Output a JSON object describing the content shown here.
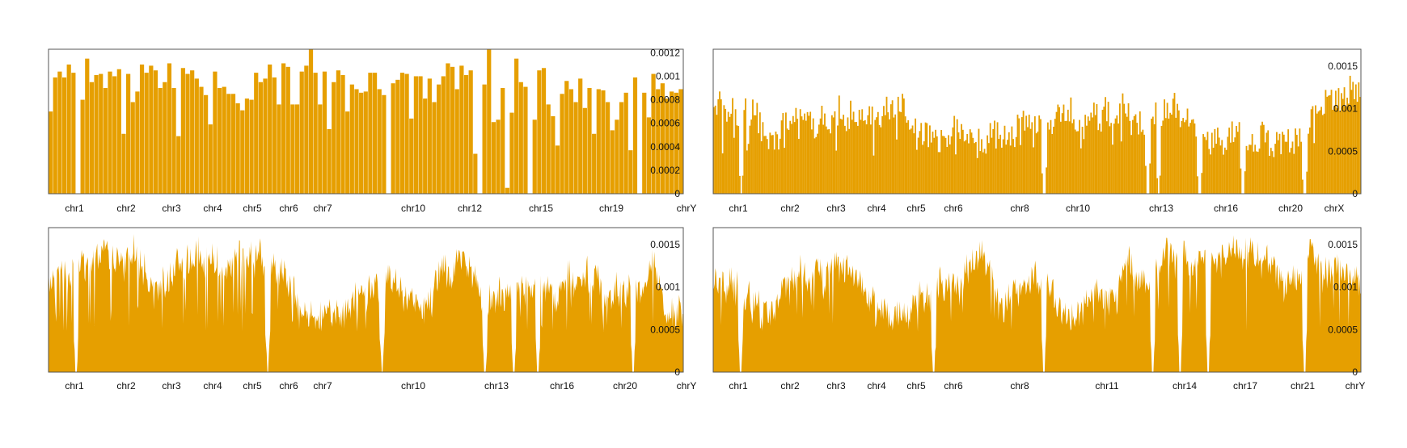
{
  "theme": {
    "bar_color": "#E69F00",
    "frame_color": "#555555",
    "text_color": "#111111",
    "background": "#ffffff"
  },
  "chart_data": [
    {
      "type": "bar",
      "chromosome_labels": [
        "chr1",
        "chr2",
        "chr3",
        "chr4",
        "chr5",
        "chr6",
        "chr7",
        "chr10",
        "chr12",
        "chr15",
        "chr19",
        "chrY"
      ],
      "yticks": [
        0,
        0.0002,
        0.0004,
        0.0006,
        0.0008,
        0.001,
        0.0012
      ],
      "ytick_labels": [
        "0",
        "0.0002",
        "0.0004",
        "0.0006",
        "0.0008",
        "0.001",
        "0.0012"
      ],
      "ylim": [
        0,
        0.00123
      ],
      "grid": false,
      "values": [
        0.0007,
        0.00099,
        0.00104,
        0.00099,
        0.0011,
        0.00103,
        0,
        0.0008,
        0.00115,
        0.00095,
        0.00101,
        0.00102,
        0.0009,
        0.00104,
        0.001,
        0.00106,
        0.00051,
        0.00102,
        0.00078,
        0.00087,
        0.0011,
        0.00103,
        0.00109,
        0.00105,
        0.0009,
        0.00095,
        0.00111,
        0.0009,
        0.00049,
        0.00107,
        0.00102,
        0.00105,
        0.00098,
        0.00091,
        0.00084,
        0.00059,
        0.00104,
        0.0009,
        0.00091,
        0.00085,
        0.00085,
        0.00077,
        0.00071,
        0.00081,
        0.0008,
        0.00103,
        0.00095,
        0.00098,
        0.0011,
        0.00099,
        0.00076,
        0.00111,
        0.00108,
        0.00076,
        0.00076,
        0.00104,
        0.00109,
        0.00123,
        0.00103,
        0.00076,
        0.00104,
        0.00055,
        0.00095,
        0.00105,
        0.00101,
        0.0007,
        0.00093,
        0.00089,
        0.00086,
        0.00087,
        0.00103,
        0.00103,
        0.00089,
        0.00084,
        0,
        0.00094,
        0.00097,
        0.00103,
        0.00102,
        0.00064,
        0.001,
        0.001,
        0.00081,
        0.00098,
        0.00078,
        0.00093,
        0.001,
        0.00111,
        0.00108,
        0.00089,
        0.00109,
        0.00101,
        0.00105,
        0.00034,
        0,
        0.00093,
        0.00123,
        0.00061,
        0.00063,
        0.0009,
        5e-05,
        0.00069,
        0.00115,
        0.00095,
        0.00091,
        0,
        0.00063,
        0.00105,
        0.00107,
        0.00076,
        0.00066,
        0.00041,
        0.00085,
        0.00096,
        0.00089,
        0.00078,
        0.00098,
        0.00073,
        0.0009,
        0.00051,
        0.00089,
        0.00088,
        0.00078,
        0.00054,
        0.00063,
        0.00078,
        0.00086,
        0.00037,
        0.00099,
        0,
        0.00086,
        0.00065,
        0.00102,
        0.00089,
        0.00094,
        0.00081,
        0.00087,
        0.00086,
        0.00089
      ]
    },
    {
      "type": "bar",
      "chromosome_labels": [
        "chr1",
        "chr2",
        "chr3",
        "chr4",
        "chr5",
        "chr6",
        "chr8",
        "chr10",
        "chr13",
        "chr16",
        "chr20",
        "chrX"
      ],
      "yticks": [
        0,
        0.0005,
        0.001,
        0.0015
      ],
      "ytick_labels": [
        "0",
        "0.0005",
        "0.001",
        "0.0015"
      ],
      "ylim": [
        0,
        0.0017
      ],
      "grid": false,
      "bins": 450,
      "mean": 0.00098,
      "amplitude": 0.00025
    },
    {
      "type": "area",
      "chromosome_labels": [
        "chr1",
        "chr2",
        "chr3",
        "chr4",
        "chr5",
        "chr6",
        "chr7",
        "chr10",
        "chr13",
        "chr16",
        "chr20",
        "chrY"
      ],
      "yticks": [
        0,
        0.0005,
        0.001,
        0.0015
      ],
      "ytick_labels": [
        "0",
        "0.0005",
        "0.001",
        "0.0015"
      ],
      "ylim": [
        0,
        0.0017
      ],
      "grid": false,
      "bins": 900,
      "mean": 0.00105,
      "amplitude": 0.00025
    },
    {
      "type": "area",
      "chromosome_labels": [
        "chr1",
        "chr2",
        "chr3",
        "chr4",
        "chr5",
        "chr6",
        "chr8",
        "chr11",
        "chr14",
        "chr17",
        "chr21",
        "chrY"
      ],
      "yticks": [
        0,
        0.0005,
        0.001,
        0.0015
      ],
      "ytick_labels": [
        "0",
        "0.0005",
        "0.001",
        "0.0015"
      ],
      "ylim": [
        0,
        0.0017
      ],
      "grid": false,
      "bins": 900,
      "mean": 0.00105,
      "amplitude": 0.00025
    }
  ]
}
